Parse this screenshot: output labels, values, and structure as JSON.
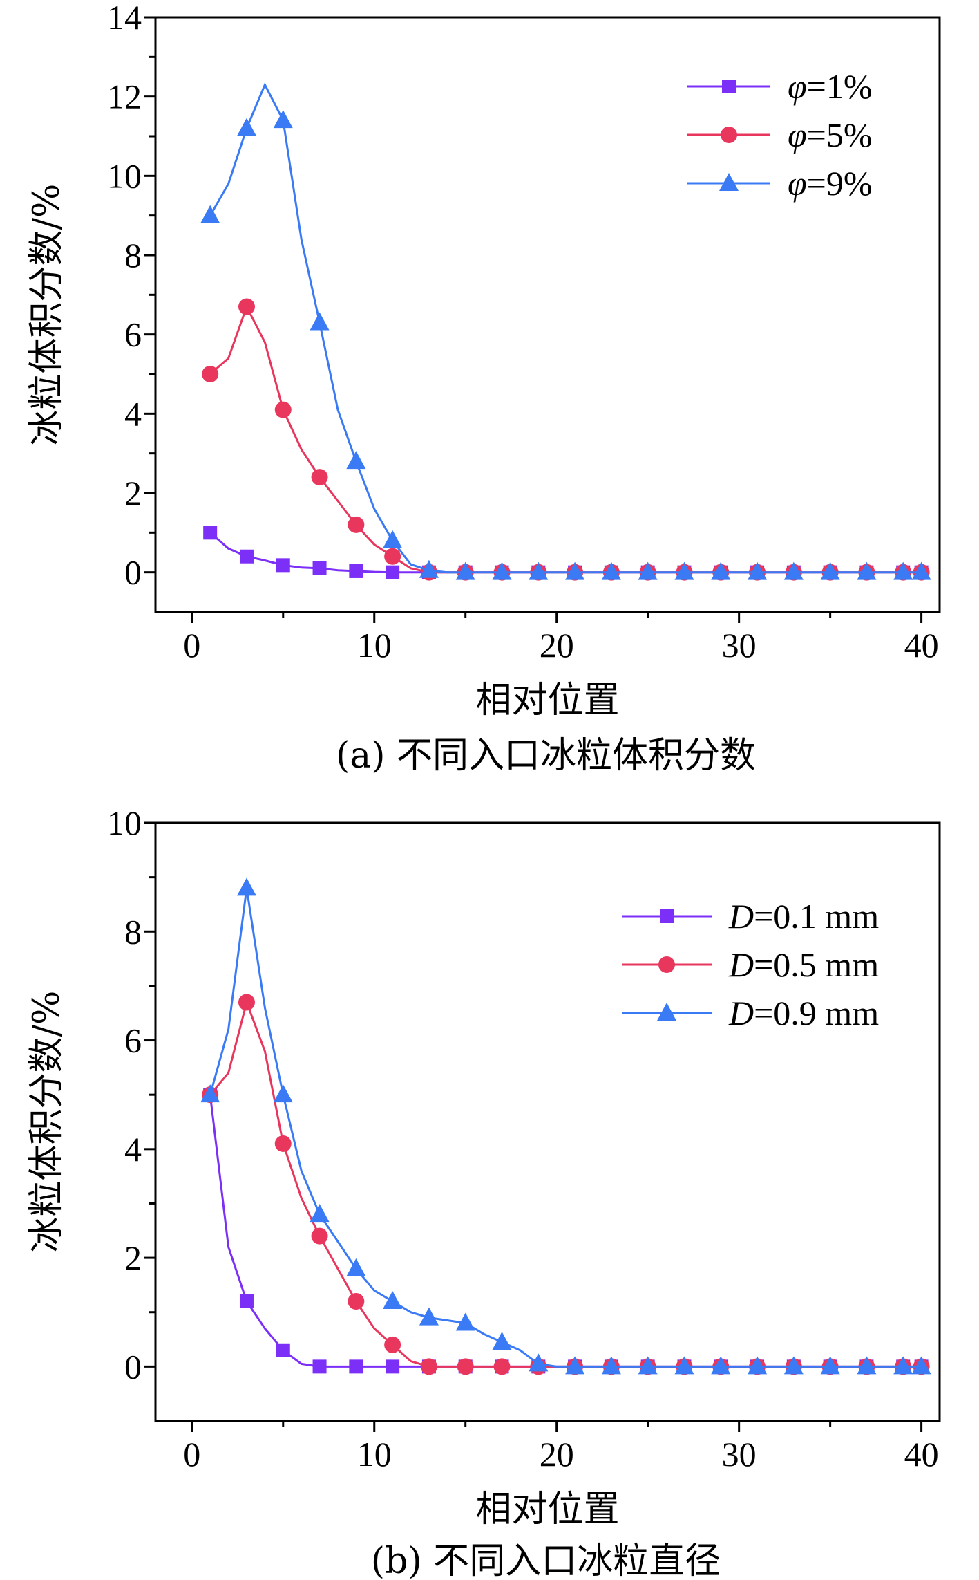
{
  "chart_data": [
    {
      "type": "line",
      "caption": "(a) 不同入口冰粒体积分数",
      "xlabel": "相对位置",
      "ylabel": "冰粒体积分数/%",
      "xlim": [
        -2,
        41
      ],
      "ylim": [
        -1,
        14
      ],
      "xticks": [
        "0",
        "10",
        "20",
        "30",
        "40"
      ],
      "yticks": [
        "0",
        "2",
        "4",
        "6",
        "8",
        "10",
        "12",
        "14"
      ],
      "legend_position": "top-right",
      "series": [
        {
          "name": "φ=1%",
          "var": "φ",
          "val": "=1%",
          "color": "#7b2ff7",
          "marker": "square",
          "x": [
            1,
            2,
            3,
            4,
            5,
            6,
            7,
            8,
            9,
            10,
            11,
            12,
            13,
            14,
            15,
            16,
            17,
            18,
            19,
            20,
            21,
            22,
            23,
            24,
            25,
            26,
            27,
            28,
            29,
            30,
            31,
            32,
            33,
            34,
            35,
            36,
            37,
            38,
            39,
            40
          ],
          "y": [
            1.0,
            0.6,
            0.4,
            0.3,
            0.18,
            0.12,
            0.1,
            0.05,
            0.03,
            0.01,
            0,
            0,
            0,
            0,
            0,
            0,
            0,
            0,
            0,
            0,
            0,
            0,
            0,
            0,
            0,
            0,
            0,
            0,
            0,
            0,
            0,
            0,
            0,
            0,
            0,
            0,
            0,
            0,
            0,
            0
          ],
          "marker_x": [
            1,
            3,
            5,
            7,
            9,
            11,
            13,
            15,
            17,
            19,
            21,
            23,
            25,
            27,
            29,
            31,
            33,
            35,
            37,
            39,
            40
          ]
        },
        {
          "name": "φ=5%",
          "var": "φ",
          "val": "=5%",
          "color": "#e8365d",
          "marker": "circle",
          "x": [
            1,
            2,
            3,
            4,
            5,
            6,
            7,
            8,
            9,
            10,
            11,
            12,
            13,
            14,
            15,
            16,
            17,
            18,
            19,
            20,
            21,
            22,
            23,
            24,
            25,
            26,
            27,
            28,
            29,
            30,
            31,
            32,
            33,
            34,
            35,
            36,
            37,
            38,
            39,
            40
          ],
          "y": [
            5.0,
            5.4,
            6.7,
            5.8,
            4.1,
            3.1,
            2.4,
            1.8,
            1.2,
            0.7,
            0.4,
            0.1,
            0,
            0,
            0,
            0,
            0,
            0,
            0,
            0,
            0,
            0,
            0,
            0,
            0,
            0,
            0,
            0,
            0,
            0,
            0,
            0,
            0,
            0,
            0,
            0,
            0,
            0,
            0,
            0
          ],
          "marker_x": [
            1,
            3,
            5,
            7,
            9,
            11,
            13,
            15,
            17,
            19,
            21,
            23,
            25,
            27,
            29,
            31,
            33,
            35,
            37,
            39,
            40
          ]
        },
        {
          "name": "φ=9%",
          "var": "φ",
          "val": "=9%",
          "color": "#3a7bf5",
          "marker": "triangle",
          "x": [
            1,
            2,
            3,
            4,
            5,
            6,
            7,
            8,
            9,
            10,
            11,
            12,
            13,
            14,
            15,
            16,
            17,
            18,
            19,
            20,
            21,
            22,
            23,
            24,
            25,
            26,
            27,
            28,
            29,
            30,
            31,
            32,
            33,
            34,
            35,
            36,
            37,
            38,
            39,
            40
          ],
          "y": [
            9.0,
            9.8,
            11.2,
            12.3,
            11.4,
            8.4,
            6.3,
            4.1,
            2.8,
            1.6,
            0.8,
            0.2,
            0.05,
            0,
            0,
            0,
            0,
            0,
            0,
            0,
            0,
            0,
            0,
            0,
            0,
            0,
            0,
            0,
            0,
            0,
            0,
            0,
            0,
            0,
            0,
            0,
            0,
            0,
            0,
            0
          ],
          "marker_x": [
            1,
            3,
            5,
            7,
            9,
            11,
            13,
            15,
            17,
            19,
            21,
            23,
            25,
            27,
            29,
            31,
            33,
            35,
            37,
            39,
            40
          ]
        }
      ]
    },
    {
      "type": "line",
      "caption": "(b) 不同入口冰粒直径",
      "xlabel": "相对位置",
      "ylabel": "冰粒体积分数/%",
      "xlim": [
        -2,
        41
      ],
      "ylim": [
        -1,
        10
      ],
      "xticks": [
        "0",
        "10",
        "20",
        "30",
        "40"
      ],
      "yticks": [
        "0",
        "2",
        "4",
        "6",
        "8",
        "10"
      ],
      "legend_position": "right",
      "series": [
        {
          "name": "D=0.1 mm",
          "var": "D",
          "val": "=0.1 mm",
          "color": "#7b2ff7",
          "marker": "square",
          "x": [
            1,
            2,
            3,
            4,
            5,
            6,
            7,
            8,
            9,
            10,
            11,
            12,
            13,
            14,
            15,
            16,
            17,
            18,
            19,
            20,
            21,
            22,
            23,
            24,
            25,
            26,
            27,
            28,
            29,
            30,
            31,
            32,
            33,
            34,
            35,
            36,
            37,
            38,
            39,
            40
          ],
          "y": [
            5.0,
            2.2,
            1.2,
            0.7,
            0.3,
            0.05,
            0,
            0,
            0,
            0,
            0,
            0,
            0,
            0,
            0,
            0,
            0,
            0,
            0,
            0,
            0,
            0,
            0,
            0,
            0,
            0,
            0,
            0,
            0,
            0,
            0,
            0,
            0,
            0,
            0,
            0,
            0,
            0,
            0,
            0
          ],
          "marker_x": [
            1,
            3,
            5,
            7,
            9,
            11,
            13,
            15,
            17,
            19,
            21,
            23,
            25,
            27,
            29,
            31,
            33,
            35,
            37,
            39,
            40
          ]
        },
        {
          "name": "D=0.5 mm",
          "var": "D",
          "val": "=0.5 mm",
          "color": "#e8365d",
          "marker": "circle",
          "x": [
            1,
            2,
            3,
            4,
            5,
            6,
            7,
            8,
            9,
            10,
            11,
            12,
            13,
            14,
            15,
            16,
            17,
            18,
            19,
            20,
            21,
            22,
            23,
            24,
            25,
            26,
            27,
            28,
            29,
            30,
            31,
            32,
            33,
            34,
            35,
            36,
            37,
            38,
            39,
            40
          ],
          "y": [
            5.0,
            5.4,
            6.7,
            5.8,
            4.1,
            3.1,
            2.4,
            1.8,
            1.2,
            0.7,
            0.4,
            0.1,
            0,
            0,
            0,
            0,
            0,
            0,
            0,
            0,
            0,
            0,
            0,
            0,
            0,
            0,
            0,
            0,
            0,
            0,
            0,
            0,
            0,
            0,
            0,
            0,
            0,
            0,
            0,
            0
          ],
          "marker_x": [
            1,
            3,
            5,
            7,
            9,
            11,
            13,
            15,
            17,
            19,
            21,
            23,
            25,
            27,
            29,
            31,
            33,
            35,
            37,
            39,
            40
          ]
        },
        {
          "name": "D=0.9 mm",
          "var": "D",
          "val": "=0.9 mm",
          "color": "#3a7bf5",
          "marker": "triangle",
          "x": [
            1,
            2,
            3,
            4,
            5,
            6,
            7,
            8,
            9,
            10,
            11,
            12,
            13,
            14,
            15,
            16,
            17,
            18,
            19,
            20,
            21,
            22,
            23,
            24,
            25,
            26,
            27,
            28,
            29,
            30,
            31,
            32,
            33,
            34,
            35,
            36,
            37,
            38,
            39,
            40
          ],
          "y": [
            5.0,
            6.2,
            8.8,
            6.6,
            5.0,
            3.6,
            2.8,
            2.3,
            1.8,
            1.4,
            1.2,
            1.0,
            0.9,
            0.85,
            0.8,
            0.6,
            0.45,
            0.3,
            0.05,
            0,
            0,
            0,
            0,
            0,
            0,
            0,
            0,
            0,
            0,
            0,
            0,
            0,
            0,
            0,
            0,
            0,
            0,
            0,
            0,
            0
          ],
          "marker_x": [
            1,
            3,
            5,
            7,
            9,
            11,
            13,
            15,
            17,
            19,
            21,
            23,
            25,
            27,
            29,
            31,
            33,
            35,
            37,
            39,
            40
          ]
        }
      ]
    }
  ]
}
